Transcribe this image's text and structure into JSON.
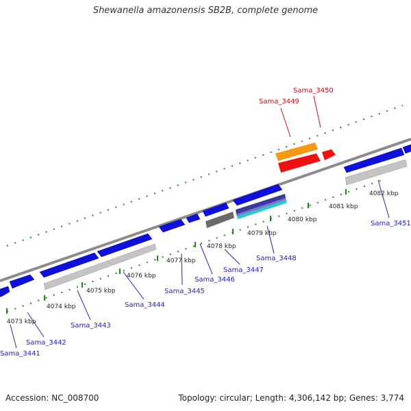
{
  "title": "Shewanella amazonensis SB2B, complete genome",
  "footer": {
    "accession": "Accession: NC_008700",
    "summary": "Topology: circular; Length: 4,306,142 bp; Genes: 3,774"
  },
  "colors": {
    "gene_forward": "#1010dd",
    "gene_reverse_track": "#bfbfbf",
    "highlight_orange": "#f39a12",
    "highlight_red": "#ee1111",
    "tick_green": "#1a8a1a",
    "backbone": "#8c8c8c",
    "label_blue": "#2222bb",
    "label_red": "#cc1111"
  },
  "scale_labels": [
    "4073 kbp",
    "4074 kbp",
    "4075 kbp",
    "4076 kbp",
    "4077 kbp",
    "4078 kbp",
    "4079 kbp",
    "4080 kbp",
    "4081 kbp",
    "4082 kbp"
  ],
  "gene_labels": [
    {
      "name": "Sama_3441",
      "color": "blue"
    },
    {
      "name": "Sama_3442",
      "color": "blue"
    },
    {
      "name": "Sama_3443",
      "color": "blue"
    },
    {
      "name": "Sama_3444",
      "color": "blue"
    },
    {
      "name": "Sama_3445",
      "color": "blue"
    },
    {
      "name": "Sama_3446",
      "color": "blue"
    },
    {
      "name": "Sama_3447",
      "color": "blue"
    },
    {
      "name": "Sama_3448",
      "color": "blue"
    },
    {
      "name": "Sama_3449",
      "color": "red"
    },
    {
      "name": "Sama_3450",
      "color": "red"
    },
    {
      "name": "Sama_3451",
      "color": "blue"
    }
  ]
}
